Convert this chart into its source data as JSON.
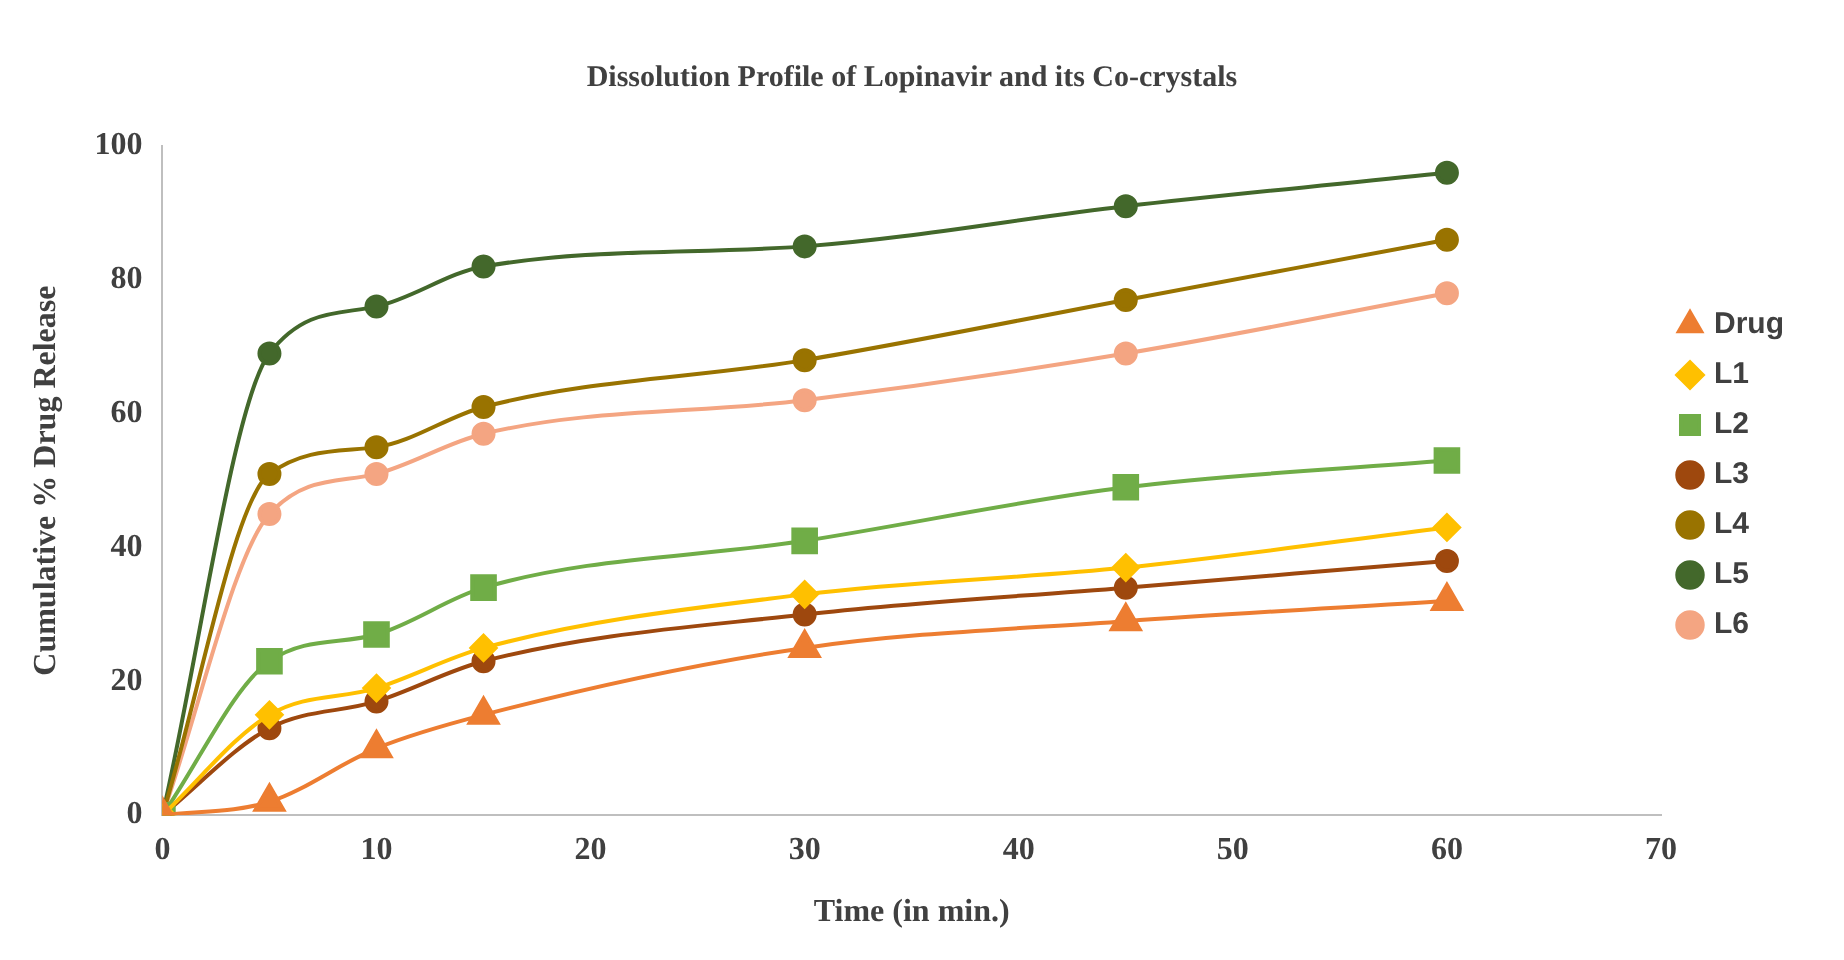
{
  "chart_data": {
    "type": "line",
    "title": "Dissolution Profile of Lopinavir and its Co-crystals",
    "xlabel": "Time (in min.)",
    "ylabel": "Cumulative % Drug Release",
    "x": [
      0,
      5,
      10,
      15,
      30,
      45,
      60
    ],
    "xlim": [
      0,
      70
    ],
    "xticks": [
      0,
      10,
      20,
      30,
      40,
      50,
      60,
      70
    ],
    "ylim": [
      0,
      100
    ],
    "yticks": [
      0,
      20,
      40,
      60,
      80,
      100
    ],
    "grid": false,
    "legend": "right",
    "series": [
      {
        "name": "Drug",
        "color": "#ed7d31",
        "marker": "triangle",
        "values": [
          0,
          2,
          10,
          15,
          25,
          29,
          32
        ]
      },
      {
        "name": "L1",
        "color": "#ffc000",
        "marker": "diamond",
        "values": [
          0,
          15,
          19,
          25,
          33,
          37,
          43
        ]
      },
      {
        "name": "L2",
        "color": "#70ad47",
        "marker": "square",
        "values": [
          0,
          23,
          27,
          34,
          41,
          49,
          53
        ]
      },
      {
        "name": "L3",
        "color": "#9e480e",
        "marker": "circle",
        "values": [
          0,
          13,
          17,
          23,
          30,
          34,
          38
        ]
      },
      {
        "name": "L4",
        "color": "#997300",
        "marker": "circle",
        "values": [
          0,
          51,
          55,
          61,
          68,
          77,
          86
        ]
      },
      {
        "name": "L5",
        "color": "#43682b",
        "marker": "circle",
        "values": [
          0,
          69,
          76,
          82,
          85,
          91,
          96
        ]
      },
      {
        "name": "L6",
        "color": "#f4a582",
        "marker": "circle",
        "values": [
          0,
          45,
          51,
          57,
          62,
          69,
          78
        ]
      }
    ]
  }
}
